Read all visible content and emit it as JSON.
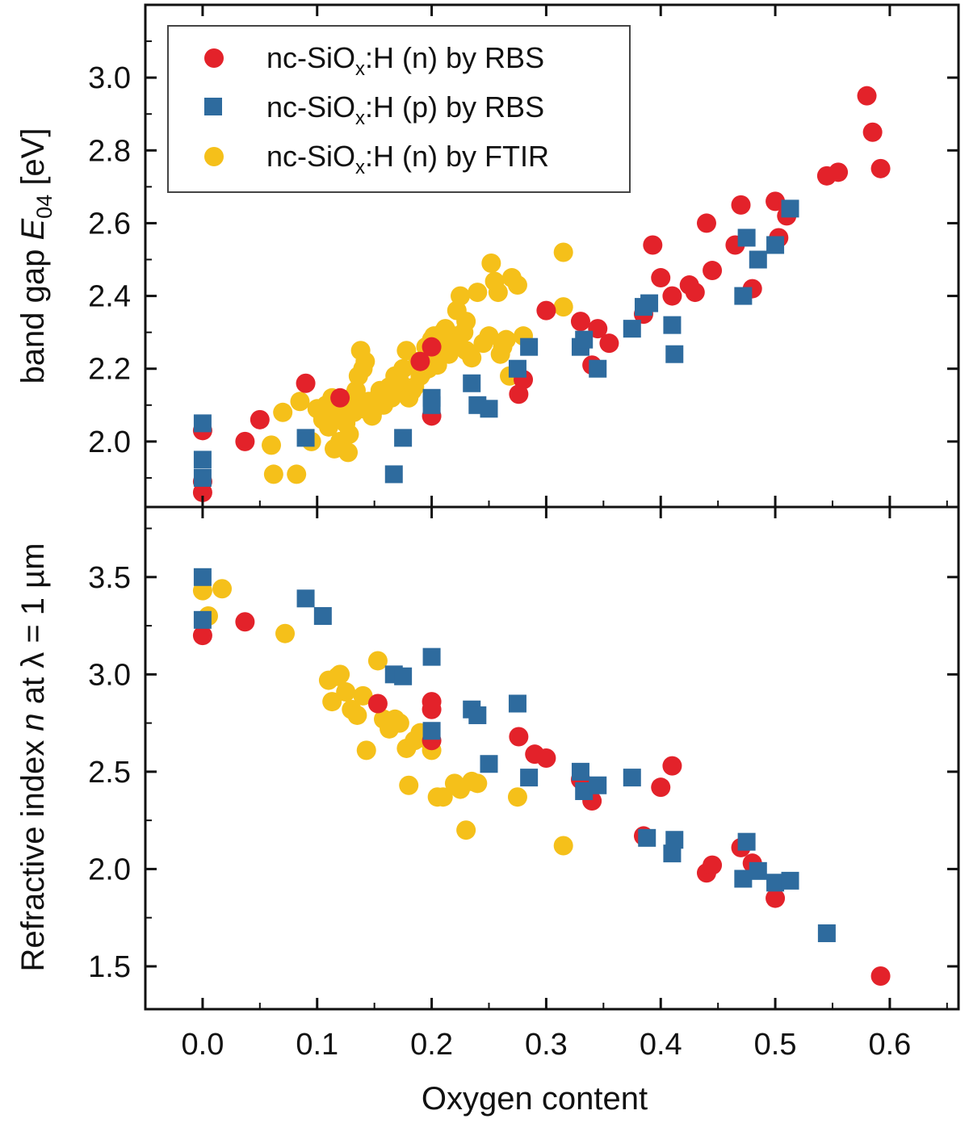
{
  "colors": {
    "rbs_n": "#e3222a",
    "rbs_p": "#2e6b9e",
    "ftir_n": "#f5c01a",
    "axis": "#111111"
  },
  "legend": {
    "items": [
      {
        "series": "rbs_n",
        "marker": "circle",
        "pre": "nc-SiO",
        "sub": "x",
        "post": ":H (n) by RBS"
      },
      {
        "series": "rbs_p",
        "marker": "square",
        "pre": "nc-SiO",
        "sub": "x",
        "post": ":H (p) by RBS"
      },
      {
        "series": "ftir_n",
        "marker": "circle",
        "pre": "nc-SiO",
        "sub": "x",
        "post": ":H (n) by FTIR"
      }
    ]
  },
  "chart_data": [
    {
      "id": "top",
      "type": "scatter",
      "ylabel_pre": "band gap ",
      "ylabel_italic": "E",
      "ylabel_sub": "04",
      "ylabel_post": " [eV]",
      "xlim": [
        -0.05,
        0.66
      ],
      "ylim": [
        1.82,
        3.2
      ],
      "yticks": [
        {
          "value": 2.0,
          "label": "2.0"
        },
        {
          "value": 2.2,
          "label": "2.2"
        },
        {
          "value": 2.4,
          "label": "2.4"
        },
        {
          "value": 2.6,
          "label": "2.6"
        },
        {
          "value": 2.8,
          "label": "2.8"
        },
        {
          "value": 3.0,
          "label": "3.0"
        }
      ],
      "series": [
        {
          "key": "rbs_n",
          "name": "nc-SiOx:H (n) by RBS",
          "x": [
            0,
            0,
            0,
            0.037,
            0.05,
            0.09,
            0.12,
            0.19,
            0.2,
            0.2,
            0.276,
            0.28,
            0.3,
            0.33,
            0.34,
            0.345,
            0.355,
            0.385,
            0.393,
            0.4,
            0.41,
            0.425,
            0.43,
            0.44,
            0.445,
            0.465,
            0.47,
            0.48,
            0.5,
            0.503,
            0.51,
            0.545,
            0.555,
            0.58,
            0.585,
            0.592
          ],
          "y": [
            1.86,
            1.89,
            2.03,
            2.0,
            2.06,
            2.16,
            2.12,
            2.22,
            2.26,
            2.07,
            2.13,
            2.17,
            2.36,
            2.33,
            2.21,
            2.31,
            2.27,
            2.35,
            2.54,
            2.45,
            2.4,
            2.43,
            2.41,
            2.6,
            2.47,
            2.54,
            2.65,
            2.42,
            2.66,
            2.56,
            2.62,
            2.73,
            2.74,
            2.95,
            2.85,
            2.75
          ]
        },
        {
          "key": "rbs_p",
          "name": "nc-SiOx:H (p) by RBS",
          "x": [
            0,
            0,
            0,
            0.09,
            0.167,
            0.175,
            0.2,
            0.2,
            0.235,
            0.24,
            0.25,
            0.275,
            0.285,
            0.33,
            0.333,
            0.345,
            0.375,
            0.385,
            0.39,
            0.41,
            0.412,
            0.472,
            0.475,
            0.485,
            0.5,
            0.513
          ],
          "y": [
            1.9,
            1.95,
            2.05,
            2.01,
            1.91,
            2.01,
            2.12,
            2.1,
            2.16,
            2.1,
            2.09,
            2.2,
            2.26,
            2.26,
            2.28,
            2.2,
            2.31,
            2.37,
            2.38,
            2.32,
            2.24,
            2.4,
            2.56,
            2.5,
            2.54,
            2.64
          ]
        },
        {
          "key": "ftir_n",
          "name": "nc-SiOx:H (n) by FTIR",
          "x": [
            0.06,
            0.062,
            0.07,
            0.082,
            0.085,
            0.095,
            0.1,
            0.105,
            0.108,
            0.11,
            0.113,
            0.115,
            0.118,
            0.12,
            0.122,
            0.125,
            0.127,
            0.13,
            0.132,
            0.134,
            0.136,
            0.138,
            0.14,
            0.142,
            0.145,
            0.148,
            0.15,
            0.153,
            0.155,
            0.158,
            0.16,
            0.163,
            0.165,
            0.168,
            0.17,
            0.173,
            0.175,
            0.178,
            0.18,
            0.183,
            0.185,
            0.188,
            0.19,
            0.192,
            0.195,
            0.197,
            0.2,
            0.202,
            0.205,
            0.207,
            0.21,
            0.212,
            0.215,
            0.218,
            0.22,
            0.222,
            0.225,
            0.228,
            0.23,
            0.235,
            0.24,
            0.245,
            0.25,
            0.255,
            0.26,
            0.265,
            0.27,
            0.275,
            0.28,
            0.252,
            0.258,
            0.262,
            0.268,
            0.315,
            0.315,
            0.12,
            0.128,
            0.14,
            0.2,
            0.22,
            0.21,
            0.23
          ],
          "y": [
            1.99,
            1.91,
            2.08,
            1.91,
            2.11,
            2.0,
            2.09,
            2.06,
            2.1,
            2.04,
            2.12,
            1.98,
            2.08,
            2.06,
            2.1,
            2.05,
            1.97,
            2.12,
            2.08,
            2.14,
            2.18,
            2.25,
            2.09,
            2.22,
            2.11,
            2.07,
            2.09,
            2.12,
            2.14,
            2.1,
            2.13,
            2.15,
            2.12,
            2.18,
            2.14,
            2.16,
            2.2,
            2.25,
            2.12,
            2.14,
            2.15,
            2.22,
            2.18,
            2.19,
            2.26,
            2.2,
            2.24,
            2.29,
            2.21,
            2.27,
            2.3,
            2.31,
            2.24,
            2.26,
            2.29,
            2.36,
            2.4,
            2.3,
            2.25,
            2.23,
            2.41,
            2.27,
            2.29,
            2.44,
            2.24,
            2.28,
            2.45,
            2.43,
            2.29,
            2.49,
            2.41,
            2.26,
            2.18,
            2.52,
            2.37,
            2.0,
            2.02,
            2.2,
            2.28,
            2.27,
            2.3,
            2.33
          ]
        }
      ]
    },
    {
      "id": "bottom",
      "type": "scatter",
      "ylabel_pre": "Refractive index ",
      "ylabel_italic": "n",
      "ylabel_post": " at λ = 1 µm",
      "xlabel": "Oxygen content",
      "xlim": [
        -0.05,
        0.66
      ],
      "ylim": [
        1.28,
        3.86
      ],
      "yticks": [
        {
          "value": 1.5,
          "label": "1.5"
        },
        {
          "value": 2.0,
          "label": "2.0"
        },
        {
          "value": 2.5,
          "label": "2.5"
        },
        {
          "value": 3.0,
          "label": "3.0"
        },
        {
          "value": 3.5,
          "label": "3.5"
        }
      ],
      "xticks": [
        {
          "value": 0.0,
          "label": "0.0"
        },
        {
          "value": 0.1,
          "label": "0.1"
        },
        {
          "value": 0.2,
          "label": "0.2"
        },
        {
          "value": 0.3,
          "label": "0.3"
        },
        {
          "value": 0.4,
          "label": "0.4"
        },
        {
          "value": 0.5,
          "label": "0.5"
        },
        {
          "value": 0.6,
          "label": "0.6"
        }
      ],
      "series": [
        {
          "key": "rbs_n",
          "name": "nc-SiOx:H (n) by RBS",
          "x": [
            0,
            0.037,
            0.153,
            0.2,
            0.2,
            0.2,
            0.276,
            0.29,
            0.3,
            0.33,
            0.34,
            0.385,
            0.4,
            0.41,
            0.44,
            0.445,
            0.47,
            0.48,
            0.5,
            0.592
          ],
          "y": [
            3.2,
            3.27,
            2.85,
            2.86,
            2.82,
            2.66,
            2.68,
            2.59,
            2.57,
            2.46,
            2.35,
            2.17,
            2.42,
            2.53,
            1.98,
            2.02,
            2.11,
            2.03,
            1.85,
            1.45
          ]
        },
        {
          "key": "rbs_p",
          "name": "nc-SiOx:H (p) by RBS",
          "x": [
            0,
            0,
            0.09,
            0.105,
            0.167,
            0.175,
            0.2,
            0.2,
            0.235,
            0.24,
            0.25,
            0.275,
            0.285,
            0.33,
            0.333,
            0.345,
            0.375,
            0.388,
            0.41,
            0.412,
            0.472,
            0.475,
            0.485,
            0.5,
            0.513,
            0.545
          ],
          "y": [
            3.28,
            3.5,
            3.39,
            3.3,
            3.0,
            2.99,
            3.09,
            2.71,
            2.82,
            2.79,
            2.54,
            2.85,
            2.47,
            2.5,
            2.4,
            2.43,
            2.47,
            2.16,
            2.08,
            2.15,
            1.95,
            2.14,
            1.99,
            1.93,
            1.94,
            1.67
          ]
        },
        {
          "key": "ftir_n",
          "name": "nc-SiOx:H (n) by FTIR",
          "x": [
            0,
            0.005,
            0.017,
            0.072,
            0.11,
            0.113,
            0.118,
            0.12,
            0.125,
            0.13,
            0.135,
            0.14,
            0.143,
            0.153,
            0.158,
            0.163,
            0.168,
            0.172,
            0.178,
            0.18,
            0.185,
            0.19,
            0.195,
            0.2,
            0.205,
            0.21,
            0.22,
            0.225,
            0.23,
            0.235,
            0.24,
            0.275,
            0.315
          ],
          "y": [
            3.43,
            3.3,
            3.44,
            3.21,
            2.97,
            2.86,
            2.99,
            3.0,
            2.91,
            2.82,
            2.79,
            2.89,
            2.61,
            3.07,
            2.77,
            2.72,
            2.77,
            2.75,
            2.62,
            2.43,
            2.66,
            2.7,
            2.67,
            2.61,
            2.37,
            2.37,
            2.44,
            2.41,
            2.2,
            2.45,
            2.44,
            2.37,
            2.12
          ]
        }
      ]
    }
  ]
}
